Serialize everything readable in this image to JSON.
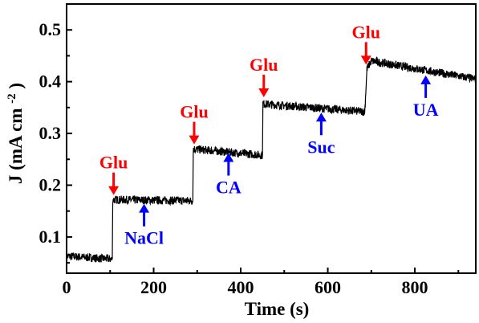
{
  "chart_data": {
    "type": "line",
    "xlabel": "Time (s)",
    "ylabel_main": "J (mA cm",
    "ylabel_sup": "-2",
    "ylabel_close": ")",
    "xlim": [
      0,
      940
    ],
    "ylim": [
      0.03,
      0.55
    ],
    "xticks": [
      0,
      200,
      400,
      600,
      800
    ],
    "yticks": [
      0.1,
      0.2,
      0.3,
      0.4,
      0.5
    ],
    "xtick_labels": [
      "0",
      "200",
      "400",
      "600",
      "800"
    ],
    "ytick_labels": [
      "0.1",
      "0.2",
      "0.3",
      "0.4",
      "0.5"
    ],
    "grid": false,
    "series": [
      {
        "color": "#000000",
        "x": [
          0,
          105,
          106,
          290,
          291,
          450,
          451,
          685,
          690,
          700,
          940
        ],
        "y": [
          0.063,
          0.057,
          0.172,
          0.17,
          0.27,
          0.258,
          0.357,
          0.342,
          0.425,
          0.44,
          0.405
        ]
      }
    ],
    "annotations": [
      {
        "label": "Glu",
        "x": 108,
        "y_tip": 0.181,
        "color": "#ff0000",
        "direction": "down"
      },
      {
        "label": "Glu",
        "x": 293,
        "y_tip": 0.279,
        "color": "#ff0000",
        "direction": "down"
      },
      {
        "label": "Glu",
        "x": 453,
        "y_tip": 0.37,
        "color": "#ff0000",
        "direction": "down"
      },
      {
        "label": "Glu",
        "x": 688,
        "y_tip": 0.433,
        "color": "#ff0000",
        "direction": "down"
      },
      {
        "label": "NaCl",
        "x": 178,
        "y_tip": 0.164,
        "color": "#0000ff",
        "direction": "up"
      },
      {
        "label": "CA",
        "x": 372,
        "y_tip": 0.262,
        "color": "#0000ff",
        "direction": "up"
      },
      {
        "label": "Suc",
        "x": 585,
        "y_tip": 0.34,
        "color": "#0000ff",
        "direction": "up"
      },
      {
        "label": "UA",
        "x": 825,
        "y_tip": 0.412,
        "color": "#0000ff",
        "direction": "up"
      }
    ]
  }
}
